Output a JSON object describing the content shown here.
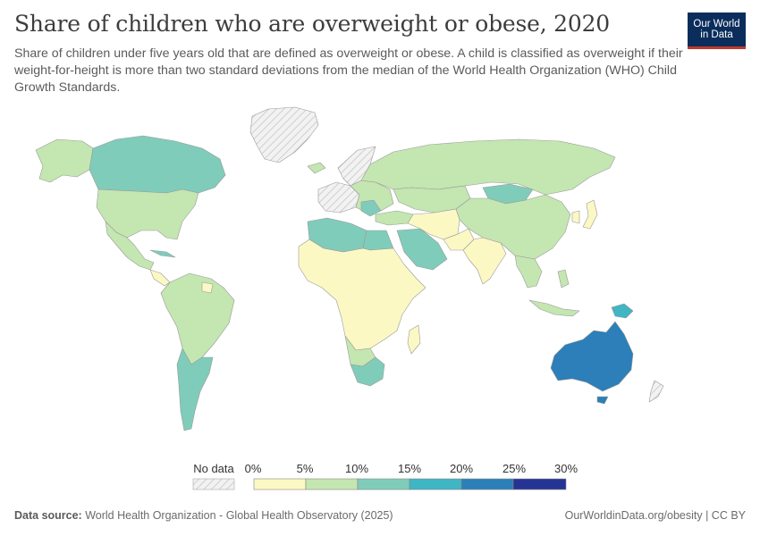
{
  "header": {
    "title": "Share of children who are overweight or obese, 2020",
    "subtitle": "Share of children under five years old that are defined as overweight or obese. A child is classified as overweight if their weight-for-height is more than two standard deviations from the median of the World Health Organization (WHO) Child Growth Standards."
  },
  "logo": {
    "line1": "Our World",
    "line2": "in Data",
    "bg_color": "#0b2d5c",
    "accent_color": "#c0392b"
  },
  "legend": {
    "no_data_label": "No data",
    "ticks": [
      "0%",
      "5%",
      "10%",
      "15%",
      "20%",
      "25%",
      "30%"
    ],
    "bins": [
      {
        "range": "0-5%",
        "color": "#fbf8c4"
      },
      {
        "range": "5-10%",
        "color": "#c4e6b1"
      },
      {
        "range": "10-15%",
        "color": "#7fccba"
      },
      {
        "range": "15-20%",
        "color": "#40b5c4"
      },
      {
        "range": "20-25%",
        "color": "#2c7fb8"
      },
      {
        "range": "25-30%",
        "color": "#253494"
      }
    ]
  },
  "footer": {
    "source_label": "Data source:",
    "source_text": "World Health Organization - Global Health Observatory (2025)",
    "right_text": "OurWorldinData.org/obesity | CC BY"
  },
  "map_regions": [
    {
      "name": "Canada",
      "color": "#7fccba"
    },
    {
      "name": "United States",
      "color": "#c4e6b1"
    },
    {
      "name": "Mexico",
      "color": "#c4e6b1"
    },
    {
      "name": "South America",
      "color": "#c4e6b1"
    },
    {
      "name": "Argentina",
      "color": "#7fccba"
    },
    {
      "name": "Russia",
      "color": "#c4e6b1"
    },
    {
      "name": "Mongolia",
      "color": "#7fccba"
    },
    {
      "name": "China",
      "color": "#c4e6b1"
    },
    {
      "name": "India",
      "color": "#fbf8c4"
    },
    {
      "name": "Africa",
      "color": "#fbf8c4"
    },
    {
      "name": "South Africa",
      "color": "#7fccba"
    },
    {
      "name": "Papua New Guinea",
      "color": "#40b5c4"
    },
    {
      "name": "Australia",
      "color": "#2c7fb8"
    },
    {
      "name": "Greenland",
      "color": "no data"
    }
  ]
}
